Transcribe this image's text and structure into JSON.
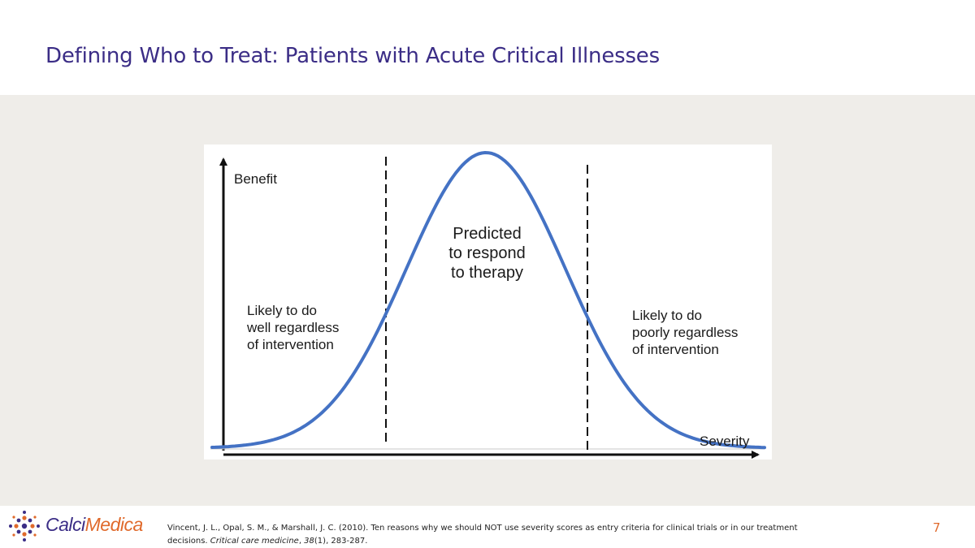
{
  "slide": {
    "title": "Defining Who to Treat: Patients with Acute Critical Illnesses",
    "page_number": "7"
  },
  "diagram": {
    "y_axis_label": "Benefit",
    "x_axis_label": "Severity",
    "regions": {
      "left": [
        "Likely to do",
        "well regardless",
        "of intervention"
      ],
      "center": [
        "Predicted",
        "to respond",
        "to therapy"
      ],
      "right": [
        "Likely to do",
        "poorly regardless",
        "of intervention"
      ]
    },
    "curve_color": "#4472c4"
  },
  "footer": {
    "logo": {
      "part1": "Calci",
      "part2": "Medica",
      "color1": "#3b2d86",
      "color2": "#e06a2c"
    },
    "citation": {
      "authors": "Vincent, J. L., Opal, S. M., & Marshall, J. C. (2010). Ten reasons why we should NOT use severity scores as entry criteria for clinical trials or in our treatment decisions.",
      "journal": "Critical care medicine",
      "volume": "38",
      "issue_pages": "(1), 283-287."
    }
  }
}
